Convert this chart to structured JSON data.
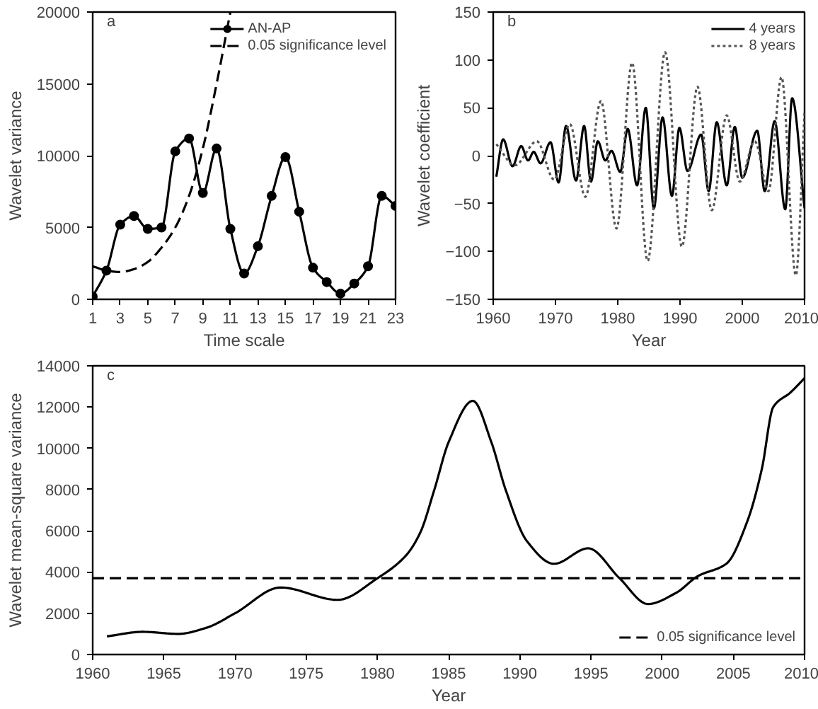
{
  "chart_data": [
    {
      "type": "line",
      "xlabel": "Time scale",
      "ylabel": "Wavelet variance",
      "annotations": [
        "a"
      ],
      "xlim": [
        1,
        23
      ],
      "ylim": [
        0,
        20000
      ],
      "xticks": [
        1,
        3,
        5,
        7,
        9,
        11,
        13,
        15,
        17,
        19,
        21,
        23
      ],
      "yticks": [
        0,
        5000,
        10000,
        15000,
        20000
      ],
      "grid": false,
      "legend": "top right",
      "series": [
        {
          "name": "AN-AP",
          "color": "#000000",
          "marker": "circle",
          "line_style": "solid",
          "x": [
            1,
            2,
            3,
            4,
            5,
            6,
            7,
            8,
            9,
            10,
            11,
            12,
            13,
            14,
            15,
            16,
            17,
            18,
            19,
            20,
            21,
            22,
            23
          ],
          "values": [
            200,
            2000,
            5200,
            5800,
            4900,
            5000,
            10300,
            11200,
            7400,
            10500,
            4900,
            1800,
            3700,
            7200,
            9900,
            6100,
            2200,
            1200,
            400,
            1100,
            2300,
            7200,
            6500
          ]
        },
        {
          "name": "0.05 significance level",
          "color": "#000000",
          "marker": "none",
          "line_style": "dashed",
          "x": [
            1,
            2,
            3,
            4,
            5,
            6,
            7,
            8,
            9,
            10,
            11
          ],
          "values": [
            2300,
            2000,
            1900,
            2100,
            2600,
            3600,
            5000,
            7200,
            10500,
            15000,
            20000
          ]
        }
      ]
    },
    {
      "type": "line",
      "xlabel": "Year",
      "ylabel": "Wavelet coefficient",
      "annotations": [
        "b"
      ],
      "xlim": [
        1960,
        2010
      ],
      "ylim": [
        -150,
        150
      ],
      "xticks": [
        1960,
        1970,
        1980,
        1990,
        2000,
        2010
      ],
      "yticks": [
        -150,
        -100,
        -50,
        0,
        50,
        100,
        150
      ],
      "grid": false,
      "legend": "top right",
      "series": [
        {
          "name": "4 years",
          "color": "#000000",
          "marker": "none",
          "line_style": "solid",
          "x": [
            1960.5,
            1961.6,
            1963.1,
            1964.5,
            1965.6,
            1966.5,
            1967.6,
            1969.2,
            1970.5,
            1971.7,
            1973.3,
            1974.6,
            1975.7,
            1976.8,
            1978.0,
            1979.0,
            1980.4,
            1981.6,
            1983.1,
            1984.5,
            1985.8,
            1987.2,
            1988.7,
            1989.9,
            1991.2,
            1993.4,
            1994.6,
            1995.9,
            1997.5,
            1998.8,
            2000.0,
            2002.4,
            2003.6,
            2005.2,
            2006.9,
            2008.0,
            2010.0
          ],
          "values": [
            -22,
            17,
            -11,
            10,
            -5,
            4,
            -8,
            14,
            -28,
            31,
            -26,
            31,
            -27,
            15,
            -5,
            5,
            -17,
            28,
            -31,
            50,
            -55,
            40,
            -42,
            29,
            -16,
            22,
            -37,
            35,
            -31,
            30,
            -23,
            26,
            -37,
            36,
            -56,
            60,
            -55
          ]
        },
        {
          "name": "8 years",
          "color": "#555555",
          "marker": "none",
          "line_style": "dotted",
          "x": [
            1960.5,
            1963.5,
            1967.0,
            1969.8,
            1972.3,
            1974.8,
            1977.3,
            1979.8,
            1982.3,
            1984.8,
            1987.6,
            1990.3,
            1992.8,
            1995.1,
            1997.5,
            1999.6,
            2002.0,
            2004.2,
            2006.3,
            2008.6,
            2010.0
          ],
          "values": [
            12,
            -10,
            15,
            -25,
            33,
            -43,
            57,
            -76,
            97,
            -110,
            108,
            -95,
            72,
            -57,
            42,
            -27,
            15,
            -37,
            82,
            -125,
            45
          ]
        }
      ]
    },
    {
      "type": "line",
      "xlabel": "Year",
      "ylabel": "Wavelet mean-square variance",
      "annotations": [
        "c"
      ],
      "xlim": [
        1960,
        2010
      ],
      "ylim": [
        0,
        14000
      ],
      "xticks": [
        1960,
        1965,
        1970,
        1975,
        1980,
        1985,
        1990,
        1995,
        2000,
        2005,
        2010
      ],
      "yticks": [
        0,
        2000,
        4000,
        6000,
        8000,
        10000,
        12000,
        14000
      ],
      "grid": false,
      "legend": "bottom right",
      "ref_lines": [
        {
          "axis": "y",
          "value": 3700,
          "label": "0.05 significance level",
          "line_style": "dashed",
          "color": "#000000"
        }
      ],
      "series": [
        {
          "color": "#000000",
          "marker": "none",
          "line_style": "solid",
          "x": [
            1961,
            1963.5,
            1966,
            1968,
            1970,
            1973.2,
            1977.2,
            1980,
            1982,
            1983,
            1984,
            1985,
            1986.7,
            1988,
            1989,
            1990.5,
            1992.4,
            1994.8,
            1997,
            1999,
            2001,
            2002.5,
            2004.5,
            2006,
            2007,
            2007.8,
            2009,
            2010
          ],
          "values": [
            880,
            1100,
            1000,
            1300,
            2000,
            3250,
            2650,
            3700,
            4800,
            5900,
            8000,
            10300,
            12300,
            10300,
            8000,
            5500,
            4400,
            5150,
            3700,
            2450,
            3000,
            3800,
            4400,
            6500,
            9000,
            12000,
            12700,
            13400
          ]
        }
      ]
    }
  ]
}
